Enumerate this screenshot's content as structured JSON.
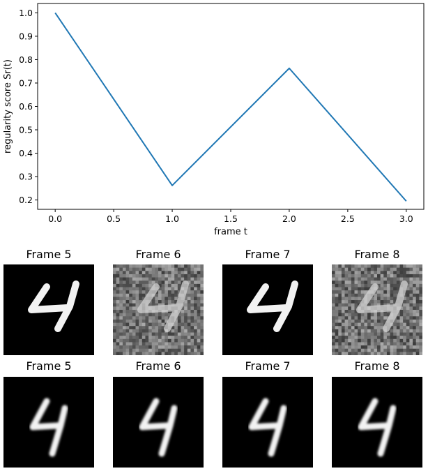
{
  "chart_data": {
    "type": "line",
    "x": [
      0.0,
      1.0,
      2.0,
      3.0
    ],
    "series": [
      {
        "values": [
          1.0,
          0.262,
          0.763,
          0.195
        ],
        "color": "#1f77b4"
      }
    ],
    "xlabel": "frame t",
    "ylabel": "regularity score Sr(t)",
    "xticks": [
      "0.0",
      "0.5",
      "1.0",
      "1.5",
      "2.0",
      "2.5",
      "3.0"
    ],
    "yticks": [
      "0.2",
      "0.3",
      "0.4",
      "0.5",
      "0.6",
      "0.7",
      "0.8",
      "0.9",
      "1.0"
    ],
    "xlim": [
      -0.15,
      3.15
    ],
    "ylim": [
      0.16,
      1.04
    ],
    "grid": false,
    "legend": false
  },
  "frames": {
    "row1": [
      {
        "title": "Frame 5",
        "style": "clean-digit"
      },
      {
        "title": "Frame 6",
        "style": "noisy-digit"
      },
      {
        "title": "Frame 7",
        "style": "clean-digit"
      },
      {
        "title": "Frame 8",
        "style": "noisy-digit"
      }
    ],
    "row2": [
      {
        "title": "Frame 5",
        "style": "reconstructed-digit"
      },
      {
        "title": "Frame 6",
        "style": "reconstructed-digit"
      },
      {
        "title": "Frame 7",
        "style": "reconstructed-digit"
      },
      {
        "title": "Frame 8",
        "style": "reconstructed-digit"
      }
    ]
  }
}
